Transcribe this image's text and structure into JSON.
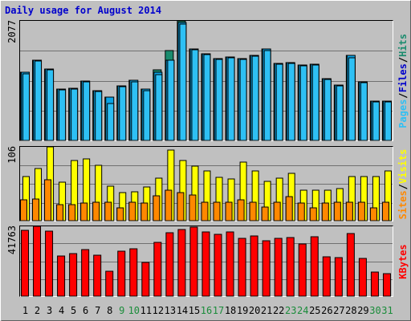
{
  "chart_data": {
    "type": "bar",
    "title": "Daily usage for August 2014",
    "categories": [
      "1",
      "2",
      "3",
      "4",
      "5",
      "6",
      "7",
      "8",
      "9",
      "10",
      "11",
      "12",
      "13",
      "14",
      "15",
      "16",
      "17",
      "18",
      "19",
      "20",
      "21",
      "22",
      "23",
      "24",
      "25",
      "26",
      "27",
      "28",
      "29",
      "30",
      "31"
    ],
    "weekend_days": [
      "9",
      "10",
      "16",
      "17",
      "23",
      "24",
      "30",
      "31"
    ],
    "colors": {
      "background": "#c0c0c0",
      "title": "#0000cc",
      "hits": "#1a8c6e",
      "files": "#0aa4e6",
      "pages": "#2ec0f4",
      "visits": "#ffff00",
      "sites": "#ff8800",
      "kbytes": "#ff0000",
      "weekend_label": "#1a8c3a",
      "weekday_label": "#000000"
    },
    "panels": [
      {
        "id": "hits-files-pages",
        "ymax_label": "2077",
        "ylim": [
          0,
          2077
        ],
        "legend": [
          "Pages",
          "/",
          "Files",
          "/",
          "Hits"
        ],
        "series": [
          {
            "name": "Hits",
            "values": [
              1179,
              1392,
              1245,
              890,
              906,
              1034,
              871,
              752,
              945,
              1040,
              892,
              1233,
              1567,
              2077,
              1587,
              1512,
              1425,
              1454,
              1418,
              1473,
              1584,
              1339,
              1349,
              1306,
              1323,
              1080,
              958,
              1473,
              1013,
              680,
              690
            ]
          },
          {
            "name": "Files",
            "values": [
              1179,
              1392,
              1245,
              890,
              906,
              1034,
              871,
              752,
              945,
              1040,
              892,
              1179,
              1400,
              2052,
              1587,
              1512,
              1425,
              1454,
              1418,
              1473,
              1584,
              1339,
              1349,
              1306,
              1323,
              1080,
              958,
              1473,
              1013,
              680,
              690
            ]
          },
          {
            "name": "Pages",
            "values": [
              1155,
              1379,
              1227,
              880,
              894,
              1019,
              854,
              646,
              932,
              1016,
              867,
              1139,
              1396,
              2021,
              1570,
              1493,
              1410,
              1439,
              1401,
              1459,
              1566,
              1322,
              1335,
              1293,
              1309,
              1066,
              944,
              1431,
              997,
              670,
              666
            ]
          }
        ]
      },
      {
        "id": "visits-sites",
        "ymax_label": "106",
        "ylim": [
          0,
          106
        ],
        "legend": [
          "Sites",
          "/",
          "Visits"
        ],
        "series": [
          {
            "name": "Visits",
            "values": [
              63,
              75,
              106,
              55,
              86,
              89,
              80,
              50,
              40,
              41,
              48,
              61,
              101,
              86,
              78,
              72,
              62,
              60,
              84,
              72,
              56,
              61,
              68,
              44,
              44,
              44,
              46,
              63,
              63,
              63,
              71
            ]
          },
          {
            "name": "Sites",
            "values": [
              30,
              31,
              59,
              23,
              23,
              25,
              27,
              27,
              19,
              26,
              25,
              36,
              44,
              40,
              37,
              27,
              27,
              27,
              30,
              26,
              20,
              27,
              34,
              25,
              18,
              25,
              26,
              27,
              27,
              18,
              27
            ]
          }
        ]
      },
      {
        "id": "kbytes",
        "ymax_label": "41763",
        "ylim": [
          0,
          41763
        ],
        "legend": [
          "KBytes"
        ],
        "series": [
          {
            "name": "KBytes",
            "values": [
              39400,
              41763,
              39000,
              23800,
              25600,
              27700,
              24700,
              14700,
              26800,
              28500,
              20400,
              32000,
              38000,
              40000,
              41300,
              38500,
              37100,
              38400,
              34600,
              36200,
              33200,
              34800,
              35000,
              31000,
              35600,
              23600,
              22900,
              37400,
              22700,
              14200,
              13600
            ]
          }
        ]
      }
    ]
  }
}
